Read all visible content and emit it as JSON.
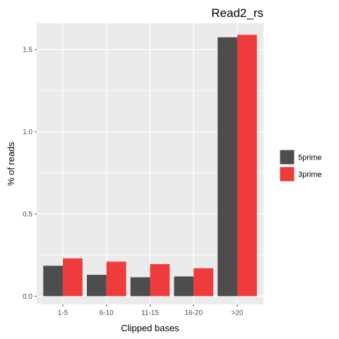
{
  "chart_data": {
    "type": "bar",
    "title": "Read2_rs",
    "xlabel": "Clipped bases",
    "ylabel": "% of reads",
    "categories": [
      "1-5",
      "6-10",
      "11-15",
      "16-20",
      ">20"
    ],
    "series": [
      {
        "name": "5prime",
        "color": "#4d4d4d",
        "values": [
          0.185,
          0.13,
          0.115,
          0.12,
          1.575
        ]
      },
      {
        "name": "3prime",
        "color": "#ee3b3b",
        "values": [
          0.23,
          0.21,
          0.195,
          0.17,
          1.59
        ]
      }
    ],
    "ylim": [
      -0.05,
      1.66
    ],
    "yticks": [
      0.0,
      0.5,
      1.0,
      1.5
    ],
    "ytick_labels": [
      "0.0",
      "0.5",
      "1.0",
      "1.5"
    ],
    "grid": true,
    "panel_background": "#ebebeb",
    "legend_position": "right",
    "bar_layout": "dodge"
  }
}
